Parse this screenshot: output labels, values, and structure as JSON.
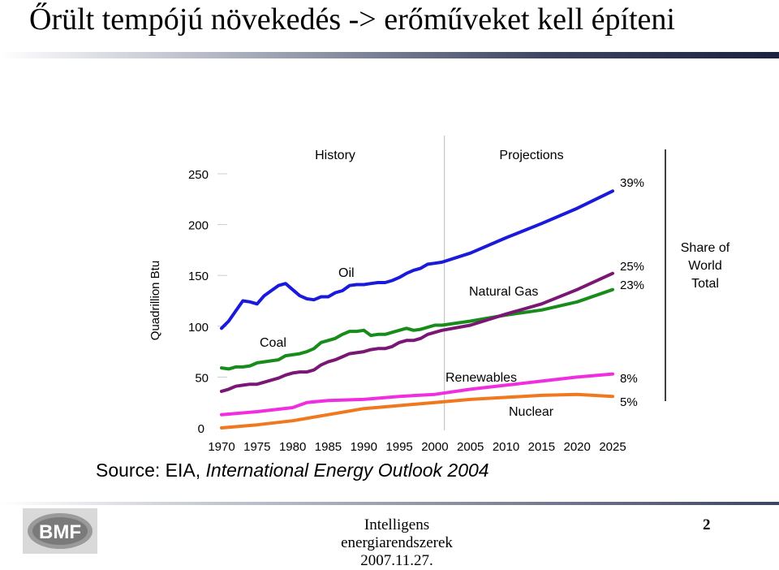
{
  "slide": {
    "title": "Őrült tempójú növekedés -> erőműveket kell építeni",
    "source_label": "Source:",
    "source_text": "EIA, ",
    "source_italic": "International Energy Outlook 2004",
    "footer_title": "Intelligens energiarendszerek",
    "footer_date": "2007.11.27.",
    "page_number": "2",
    "logo_text": "BMF"
  },
  "chart_data": {
    "type": "line",
    "ylabel": "Quadrillion Btu",
    "ylim": [
      0,
      250
    ],
    "yticks": [
      "0",
      "50",
      "100",
      "150",
      "200",
      "250"
    ],
    "xlim": [
      1970,
      2025
    ],
    "xticks": [
      "1970",
      "1975",
      "1980",
      "1985",
      "1990",
      "1995",
      "2000",
      "2005",
      "2010",
      "2015",
      "2020",
      "2025"
    ],
    "period_labels": [
      "History",
      "Projections"
    ],
    "history_end": 2001,
    "share_header": "Share of World Total",
    "series": [
      {
        "name": "Oil",
        "color": "#1a1adb",
        "share": "39%",
        "x": [
          1970,
          1971,
          1972,
          1973,
          1974,
          1975,
          1976,
          1977,
          1978,
          1979,
          1980,
          1981,
          1982,
          1983,
          1984,
          1985,
          1986,
          1987,
          1988,
          1989,
          1990,
          1991,
          1992,
          1993,
          1994,
          1995,
          1996,
          1997,
          1998,
          1999,
          2000,
          2001,
          2005,
          2010,
          2015,
          2020,
          2025
        ],
        "y": [
          98,
          105,
          115,
          125,
          124,
          122,
          130,
          135,
          140,
          142,
          136,
          130,
          127,
          126,
          129,
          129,
          133,
          135,
          140,
          141,
          141,
          142,
          143,
          143,
          145,
          148,
          152,
          155,
          157,
          161,
          162,
          163,
          172,
          187,
          201,
          216,
          233
        ]
      },
      {
        "name": "Natural Gas",
        "color": "#178c1a",
        "share": "23%",
        "x": [
          1970,
          1971,
          1972,
          1973,
          1974,
          1975,
          1976,
          1977,
          1978,
          1979,
          1980,
          1981,
          1982,
          1983,
          1984,
          1985,
          1986,
          1987,
          1988,
          1989,
          1990,
          1991,
          1992,
          1993,
          1994,
          1995,
          1996,
          1997,
          1998,
          1999,
          2000,
          2001,
          2005,
          2010,
          2015,
          2020,
          2025
        ],
        "y": [
          59,
          58,
          60,
          60,
          61,
          64,
          65,
          66,
          67,
          71,
          72,
          73,
          75,
          78,
          84,
          86,
          88,
          92,
          95,
          95,
          96,
          91,
          92,
          92,
          94,
          96,
          98,
          96,
          97,
          99,
          101,
          101,
          105,
          111,
          116,
          124,
          136
        ]
      },
      {
        "name": "Coal",
        "color": "#7a1774",
        "share": "25%",
        "x": [
          1970,
          1971,
          1972,
          1973,
          1974,
          1975,
          1976,
          1977,
          1978,
          1979,
          1980,
          1981,
          1982,
          1983,
          1984,
          1985,
          1986,
          1987,
          1988,
          1989,
          1990,
          1991,
          1992,
          1993,
          1994,
          1995,
          1996,
          1997,
          1998,
          1999,
          2000,
          2001,
          2005,
          2010,
          2015,
          2020,
          2025
        ],
        "y": [
          36,
          38,
          41,
          42,
          43,
          43,
          45,
          47,
          49,
          52,
          54,
          55,
          55,
          57,
          62,
          65,
          67,
          70,
          73,
          74,
          75,
          77,
          78,
          78,
          80,
          84,
          86,
          86,
          88,
          92,
          94,
          96,
          101,
          112,
          122,
          136,
          152
        ]
      },
      {
        "name": "Renewables",
        "color": "#f02ee0",
        "share": "8%",
        "x": [
          1970,
          1975,
          1980,
          1982,
          1985,
          1990,
          1995,
          2000,
          2005,
          2010,
          2015,
          2020,
          2025
        ],
        "y": [
          13,
          16,
          20,
          25,
          27,
          28,
          31,
          33,
          38,
          42,
          46,
          50,
          53
        ]
      },
      {
        "name": "Nuclear",
        "color": "#f0781e",
        "share": "5%",
        "x": [
          1970,
          1975,
          1980,
          1985,
          1990,
          1995,
          2000,
          2005,
          2010,
          2015,
          2020,
          2025
        ],
        "y": [
          0,
          3,
          7,
          13,
          19,
          22,
          25,
          28,
          30,
          32,
          33,
          31
        ]
      }
    ]
  }
}
